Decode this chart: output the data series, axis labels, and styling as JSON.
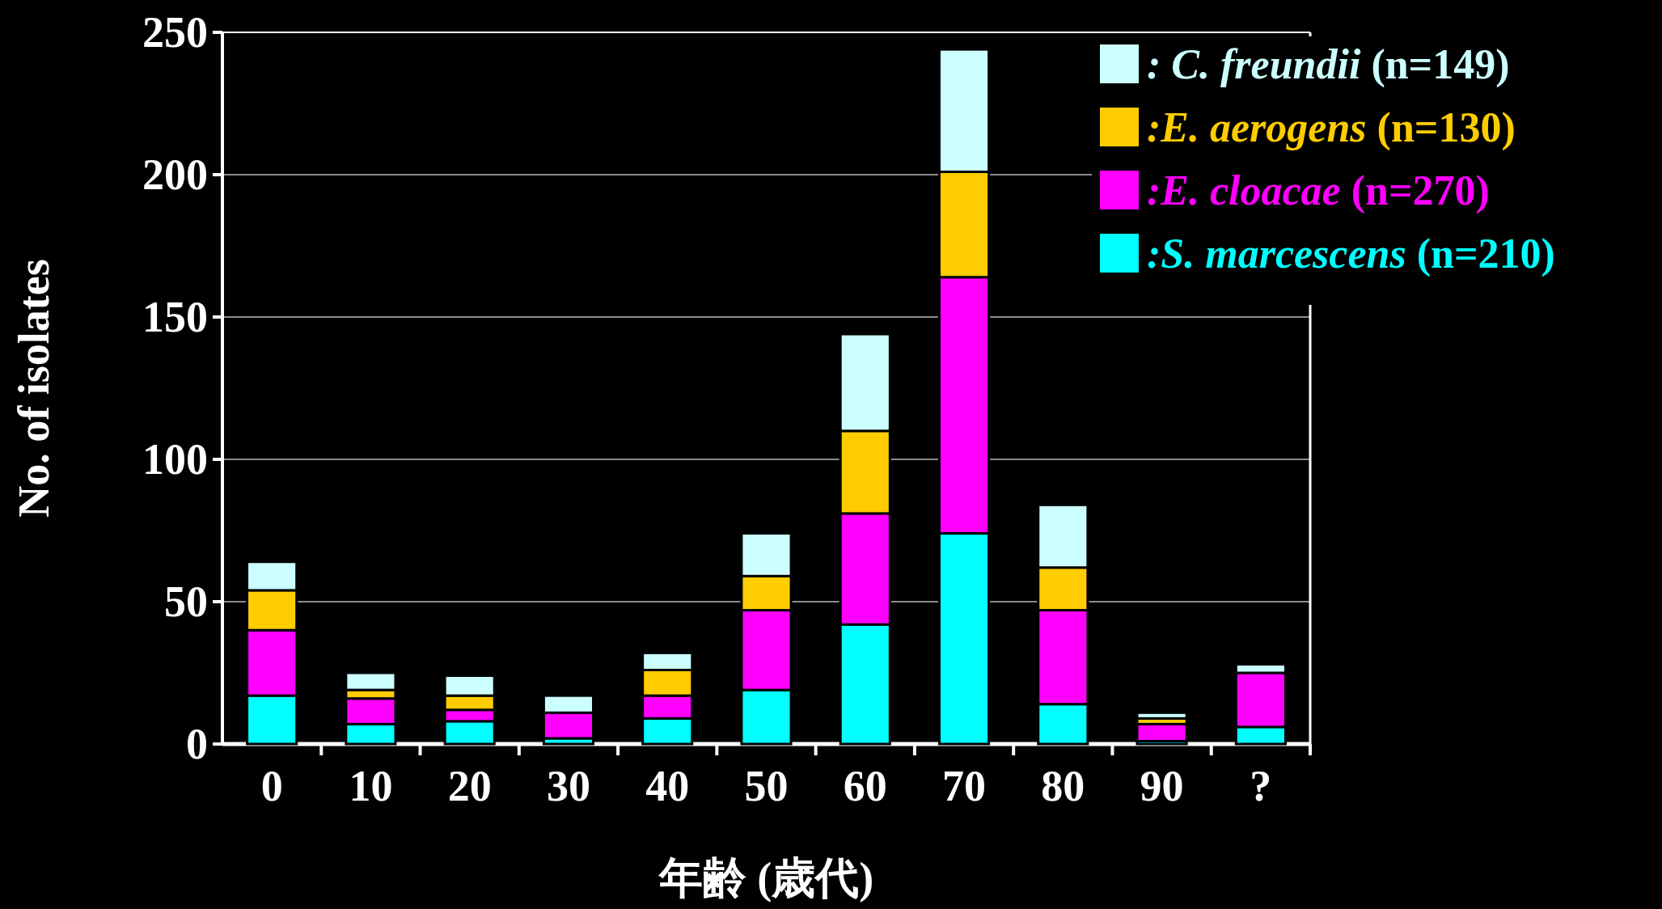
{
  "chart_data": {
    "type": "bar",
    "stacked": true,
    "categories": [
      "0",
      "10",
      "20",
      "30",
      "40",
      "50",
      "60",
      "70",
      "80",
      "90",
      "?"
    ],
    "xlabel": "年齢 (歳代)",
    "ylabel": "No. of isolates",
    "ylim": [
      0,
      250
    ],
    "yticks": [
      0,
      50,
      100,
      150,
      200,
      250
    ],
    "grid": "y",
    "legend": "top right",
    "series": [
      {
        "name": ":S. marcescens (n=210)",
        "color": "#00ffff",
        "values": [
          17,
          7,
          8,
          2,
          9,
          19,
          42,
          74,
          14,
          1,
          6
        ]
      },
      {
        "name": ":E. cloacae (n=270)",
        "color": "#ff00ff",
        "values": [
          23,
          9,
          4,
          9,
          8,
          28,
          39,
          90,
          33,
          6,
          19
        ]
      },
      {
        "name": ":E. aerogens (n=130)",
        "color": "#ffcc00",
        "values": [
          14,
          3,
          5,
          0,
          9,
          12,
          29,
          37,
          15,
          2,
          0
        ]
      },
      {
        "name": ": C. freundii (n=149)",
        "color": "#ccffff",
        "values": [
          10,
          6,
          7,
          6,
          6,
          15,
          34,
          43,
          22,
          2,
          3
        ]
      }
    ]
  }
}
